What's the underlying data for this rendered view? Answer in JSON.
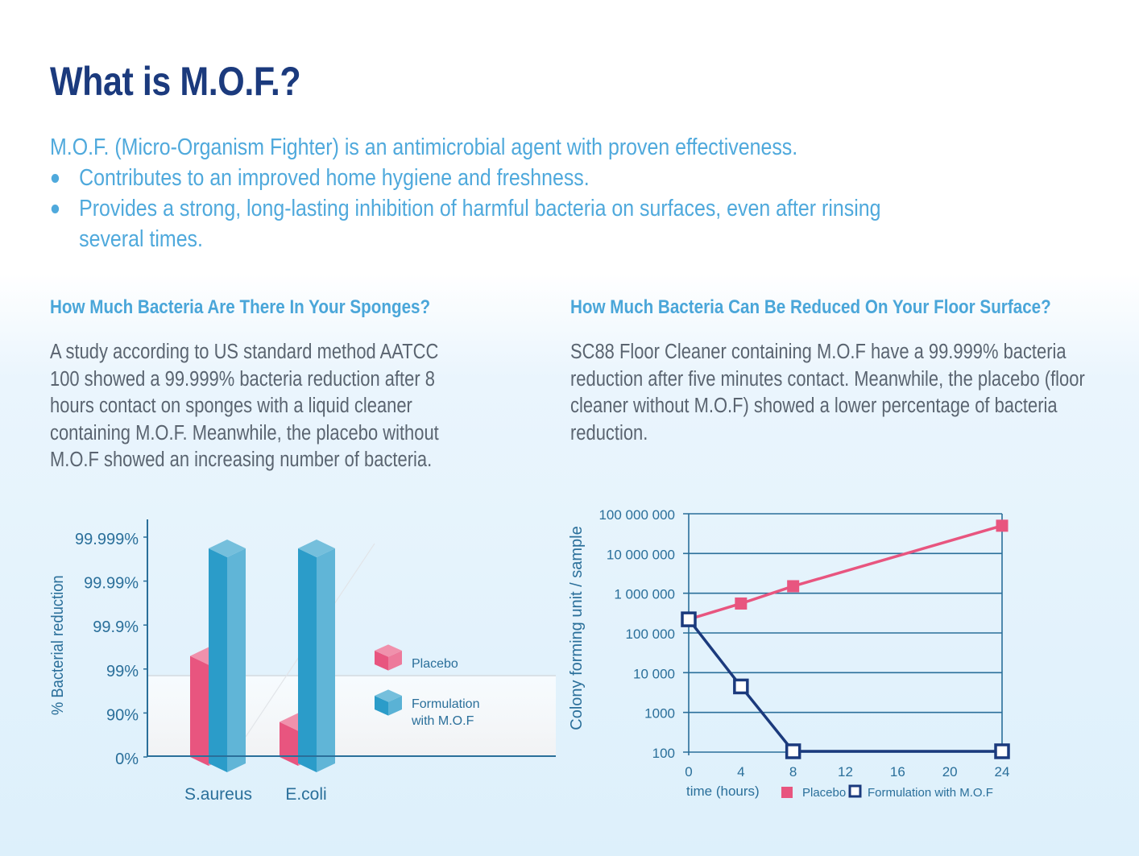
{
  "title": "What is M.O.F.?",
  "intro": {
    "lead": "M.O.F. (Micro-Organism Fighter) is an antimicrobial agent with proven effectiveness.",
    "bullets": [
      "Contributes to an improved home hygiene and freshness.",
      "Provides a strong, long-lasting  inhibition of harmful bacteria on surfaces, even after rinsing several times."
    ]
  },
  "left_section": {
    "heading": "How Much Bacteria Are There In Your Sponges?",
    "body": "A study according to US standard method AATCC 100 showed a 99.999% bacteria reduction after 8 hours contact on sponges with a liquid cleaner containing M.O.F. Meanwhile, the placebo without M.O.F showed an increasing number of bacteria."
  },
  "right_section": {
    "heading": "How Much Bacteria Can Be Reduced On Your Floor Surface?",
    "body": "SC88 Floor Cleaner containing M.O.F have a 99.999% bacteria reduction after five minutes contact. Meanwhile, the placebo (floor cleaner without M.O.F) showed a lower percentage of bacteria reduction."
  },
  "colors": {
    "placebo": "#e8557f",
    "mof_bar": "#2b9cc9",
    "mof_line": "#1b3a7d",
    "title": "#1b3a7d",
    "accent": "#4fa9dc"
  },
  "chart_data": [
    {
      "type": "bar",
      "ylabel": "% Bacterial reduction",
      "y_tick_labels": [
        "0%",
        "90%",
        "99%",
        "99.9%",
        "99.99%",
        "99.999%"
      ],
      "y_scale": "log-reduction",
      "categories": [
        "S.aureus",
        "E.coli"
      ],
      "series": [
        {
          "name": "Placebo",
          "values": [
            99.3,
            75
          ],
          "color": "#e8557f"
        },
        {
          "name": "Formulation with M.O.F",
          "values": [
            99.999,
            99.999
          ],
          "color": "#2b9cc9"
        }
      ],
      "legend": "right",
      "legend_labels": [
        "Placebo",
        "Formulation\nwith M.O.F"
      ]
    },
    {
      "type": "line",
      "ylabel": "Colony forming unit / sample",
      "xlabel": "time (hours)",
      "y_scale": "log",
      "y_tick_labels": [
        "100",
        "1000",
        "10 000",
        "100 000",
        "1 000 000",
        "10 000 000",
        "100 000 000"
      ],
      "y_tick_values": [
        100,
        1000,
        10000,
        100000,
        1000000,
        10000000,
        100000000
      ],
      "x_ticks": [
        0,
        4,
        8,
        12,
        16,
        20,
        24
      ],
      "xlim": [
        0,
        24
      ],
      "ylim": [
        100,
        100000000
      ],
      "series": [
        {
          "name": "Placebo",
          "x": [
            0,
            4,
            8,
            24
          ],
          "y": [
            220000,
            550000,
            1500000,
            50000000
          ],
          "color": "#e8557f",
          "marker": "filled-square"
        },
        {
          "name": "Formulation with M.O.F",
          "x": [
            0,
            4,
            8,
            24
          ],
          "y": [
            220000,
            4500,
            105,
            105
          ],
          "color": "#1b3a7d",
          "marker": "open-square"
        }
      ],
      "legend": "bottom"
    }
  ]
}
